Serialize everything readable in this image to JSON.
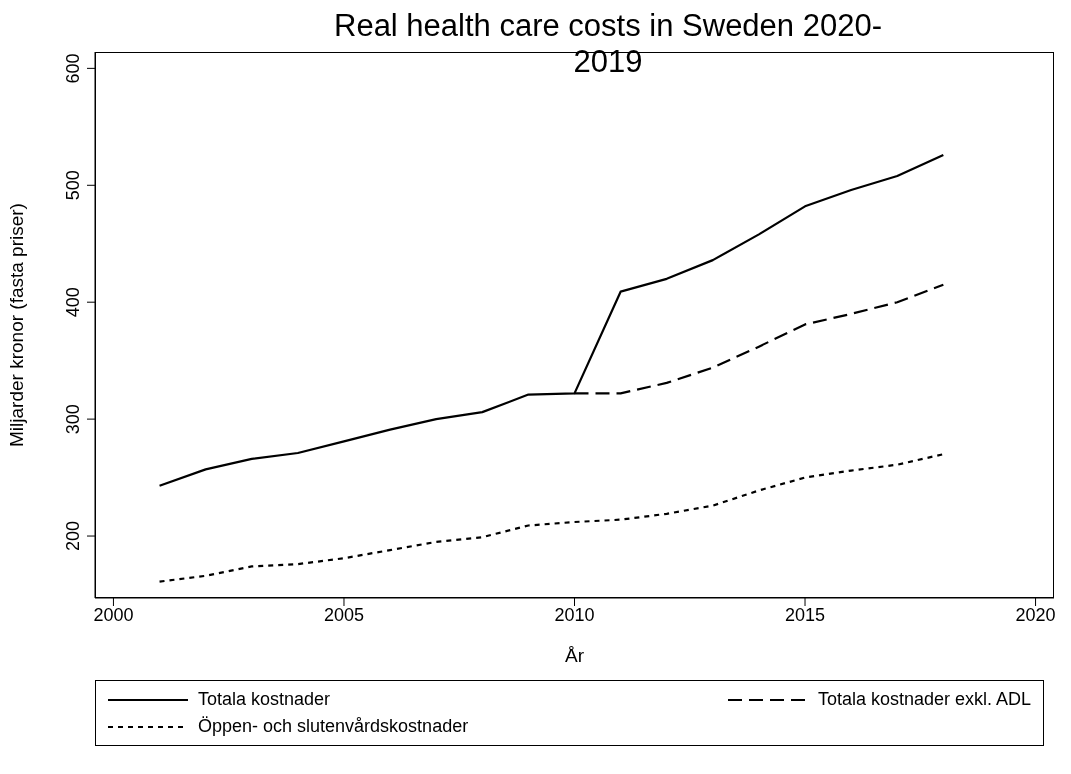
{
  "chart_data": {
    "type": "line",
    "title": "Real health care costs in Sweden 2020-2019",
    "xlabel": "År",
    "ylabel": "Miljarder kronor (fasta priser)",
    "x": [
      2001,
      2002,
      2003,
      2004,
      2005,
      2006,
      2007,
      2008,
      2009,
      2010,
      2011,
      2012,
      2013,
      2014,
      2015,
      2016,
      2017,
      2018
    ],
    "series": [
      {
        "name": "Totala kostnader",
        "color": "#000000",
        "line_style": "solid",
        "values": [
          243,
          257,
          266,
          271,
          281,
          291,
          300,
          306,
          321,
          322,
          409,
          420,
          436,
          458,
          482,
          496,
          508,
          526
        ]
      },
      {
        "name": "Totala kostnader exkl. ADL",
        "color": "#000000",
        "line_style": "dashed",
        "values": [
          null,
          null,
          null,
          null,
          null,
          null,
          null,
          null,
          null,
          322,
          322,
          331,
          344,
          362,
          381,
          390,
          400,
          415
        ]
      },
      {
        "name": "Öppen- och slutenvårdskostnader",
        "color": "#000000",
        "line_style": "dotted",
        "values": [
          161,
          166,
          174,
          176,
          181,
          188,
          195,
          199,
          209,
          212,
          214,
          219,
          226,
          239,
          250,
          256,
          261,
          270
        ]
      }
    ],
    "xlim": [
      1999.6,
      2020.4
    ],
    "xticks": [
      2000,
      2005,
      2010,
      2015,
      2020
    ],
    "ylim": [
      147,
      614
    ],
    "yticks": [
      200,
      300,
      400,
      500,
      600
    ],
    "grid": false,
    "legend": "bottom",
    "marker": "none"
  }
}
